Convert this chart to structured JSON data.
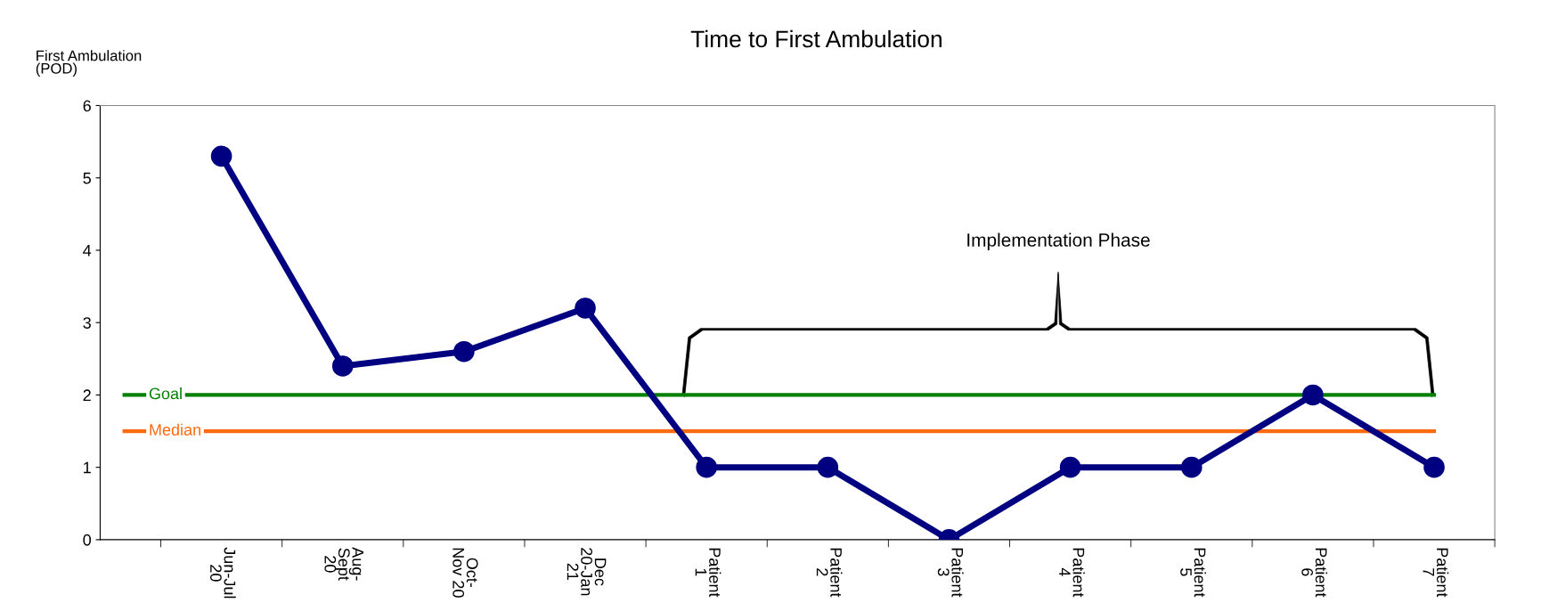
{
  "chart_data": {
    "type": "line",
    "title": "Time to First Ambulation",
    "ylabel": "First Ambulation\n(POD)",
    "categories": [
      "Jun-Jul\n20",
      "Aug-\nSept\n20",
      "Oct-\nNov 20",
      "Dec\n20-Jan\n21",
      "Patient\n1",
      "Patient\n2",
      "Patient\n3",
      "Patient\n4",
      "Patient\n5",
      "Patient\n6",
      "Patient\n7"
    ],
    "series": [
      {
        "color": "#000080",
        "values": [
          5.3,
          2.4,
          2.6,
          3.2,
          1,
          1,
          0,
          1,
          1,
          2,
          1
        ]
      }
    ],
    "ylim": [
      0,
      6
    ],
    "yticks": [
      0,
      1,
      2,
      3,
      4,
      5,
      6
    ],
    "ref_lines": [
      {
        "axis": "y",
        "value": 2,
        "label": "Goal",
        "color": "#008000"
      },
      {
        "axis": "y",
        "value": 1.5,
        "label": "Median",
        "color": "#ff6a10"
      }
    ],
    "annotations": [
      "Implementation Phase"
    ],
    "marker": "circle",
    "line_style": "solid",
    "grid": false,
    "legend": false
  }
}
